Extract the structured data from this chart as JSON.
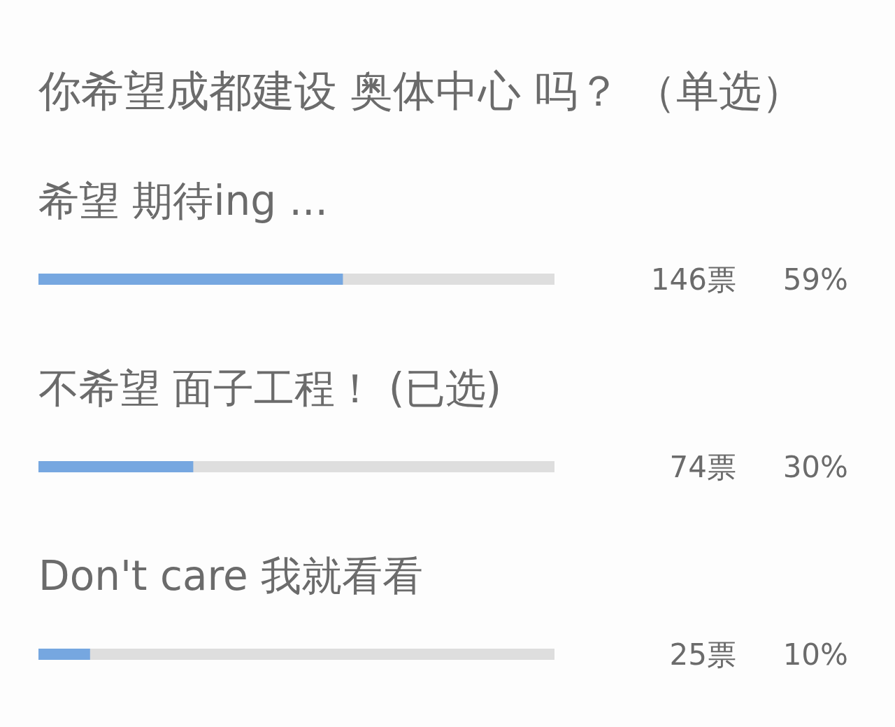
{
  "chart_data": {
    "type": "bar",
    "orientation": "horizontal",
    "title": "你希望成都建设 奥体中心 吗？ （单选）",
    "categories": [
      "希望 期待ing ...",
      "不希望 面子工程！ (已选)",
      "Don't care 我就看看"
    ],
    "values": [
      59,
      30,
      10
    ],
    "color": "#76a7e0",
    "value_labels": [
      "59%",
      "30%",
      "10%"
    ],
    "annotations": [
      "146票",
      "74票",
      "25票"
    ],
    "xlim": [
      0,
      100
    ],
    "tick_labels": "y"
  }
}
